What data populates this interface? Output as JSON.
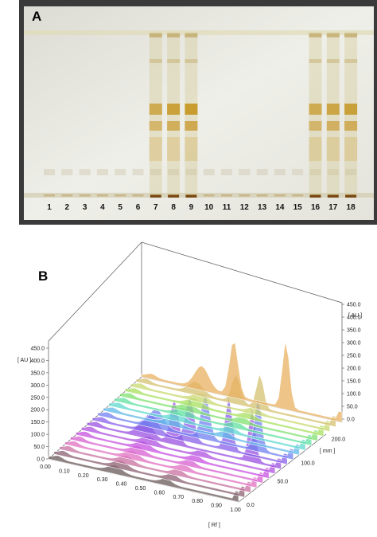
{
  "panel_a": {
    "label": "A",
    "lanes": [
      "1",
      "2",
      "3",
      "4",
      "5",
      "6",
      "7",
      "8",
      "9",
      "10",
      "11",
      "12",
      "13",
      "14",
      "15",
      "16",
      "17",
      "18"
    ]
  },
  "panel_b": {
    "label": "B",
    "left_axis": {
      "unit": "[ AU ]",
      "ticks": [
        "450.0",
        "400.0",
        "350.0",
        "300.0",
        "250.0",
        "200.0",
        "150.0",
        "100.0",
        "50.0",
        "0.0"
      ]
    },
    "right_axis": {
      "unit": "[ AU ]",
      "ticks": [
        "450.0",
        "400.0",
        "350.0",
        "300.0",
        "250.0",
        "200.0",
        "150.0",
        "100.0",
        "50.0",
        "0.0"
      ]
    },
    "rf_axis": {
      "unit": "[ Rf ]",
      "ticks": [
        "0.00",
        "0.10",
        "0.20",
        "0.30",
        "0.40",
        "0.50",
        "0.60",
        "0.70",
        "0.80",
        "0.90",
        "1.00"
      ]
    },
    "mm_axis": {
      "unit": "[ mm ]",
      "ticks": [
        "200.0",
        "100.0",
        "50.0",
        "0.0"
      ]
    }
  }
}
